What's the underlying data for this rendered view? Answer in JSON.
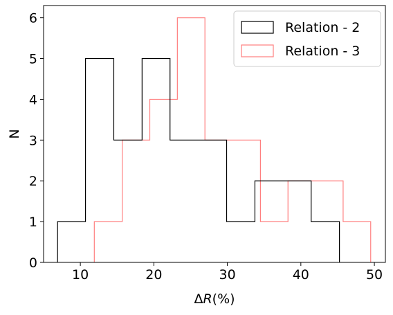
{
  "chart_data": {
    "type": "histogram",
    "xlabel_prefix": "Δ",
    "xlabel_var": "R",
    "xlabel_suffix": "(%)",
    "ylabel": "N",
    "xlim": [
      5,
      51.5
    ],
    "ylim": [
      0,
      6.3
    ],
    "xticks": [
      10,
      20,
      30,
      40,
      50
    ],
    "yticks": [
      0,
      1,
      2,
      3,
      4,
      5,
      6
    ],
    "grid": false,
    "legend_position": "top-right",
    "series": [
      {
        "name": "Relation - 2",
        "color": "#000000",
        "bin_edges": [
          6.9,
          10.7,
          14.55,
          18.4,
          22.2,
          26.05,
          29.9,
          33.75,
          37.6,
          41.4,
          45.25
        ],
        "counts": [
          1,
          5,
          3,
          5,
          3,
          3,
          1,
          2,
          2,
          1
        ]
      },
      {
        "name": "Relation - 3",
        "color": "#ff7f7f",
        "bin_edges": [
          11.9,
          15.7,
          19.45,
          23.2,
          26.95,
          30.7,
          34.5,
          38.25,
          42.0,
          45.75,
          49.5
        ],
        "counts": [
          1,
          3,
          4,
          6,
          3,
          3,
          1,
          2,
          2,
          1
        ]
      }
    ]
  }
}
